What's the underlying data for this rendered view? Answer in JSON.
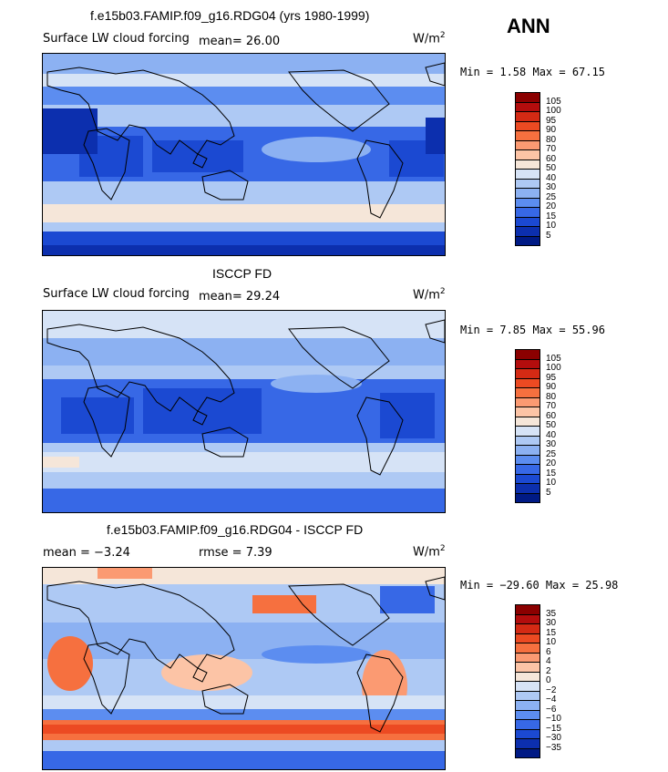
{
  "season": "ANN",
  "units": "W/m",
  "units_sup": "2",
  "panels": [
    {
      "title": "f.e15b03.FAMIP.f09_g16.RDG04 (yrs 1980-1999)",
      "variable": "Surface LW cloud forcing",
      "stat_left": "mean=   26.00",
      "stat_right": "",
      "minmax": "Min =   1.58 Max =  67.15",
      "palette": "abs"
    },
    {
      "title": "ISCCP FD",
      "variable": "Surface LW cloud forcing",
      "stat_left": "mean=   29.24",
      "stat_right": "",
      "minmax": "Min =   7.85 Max =  55.96",
      "palette": "abs"
    },
    {
      "title": "f.e15b03.FAMIP.f09_g16.RDG04 - ISCCP FD",
      "variable": "",
      "stat_left": "mean =  −3.24",
      "stat_right": "rmse =   7.39",
      "minmax": "Min = −29.60 Max =  25.98",
      "palette": "diff"
    }
  ],
  "chart_data": [
    {
      "type": "heatmap",
      "title": "f.e15b03.FAMIP.f09_g16.RDG04 (yrs 1980-1999)",
      "subtitle": "Surface LW cloud forcing",
      "units": "W/m2",
      "mean": 26.0,
      "min": 1.58,
      "max": 67.15,
      "colorbar_levels": [
        "105",
        "100",
        "95",
        "90",
        "80",
        "70",
        "60",
        "50",
        "40",
        "30",
        "25",
        "20",
        "15",
        "10",
        "5"
      ],
      "colors": [
        "#8b0000",
        "#b30d0d",
        "#d42a14",
        "#ec4a22",
        "#f6703f",
        "#fb9a72",
        "#fcc4a6",
        "#f5e6d9",
        "#d6e3f6",
        "#aec9f4",
        "#8cb1f2",
        "#5c8df0",
        "#3768e6",
        "#1b49d2",
        "#0c2fae",
        "#001a85"
      ]
    },
    {
      "type": "heatmap",
      "title": "ISCCP FD",
      "subtitle": "Surface LW cloud forcing",
      "units": "W/m2",
      "mean": 29.24,
      "min": 7.85,
      "max": 55.96,
      "colorbar_levels": [
        "105",
        "100",
        "95",
        "90",
        "80",
        "70",
        "60",
        "50",
        "40",
        "30",
        "25",
        "20",
        "15",
        "10",
        "5"
      ],
      "colors": [
        "#8b0000",
        "#b30d0d",
        "#d42a14",
        "#ec4a22",
        "#f6703f",
        "#fb9a72",
        "#fcc4a6",
        "#f5e6d9",
        "#d6e3f6",
        "#aec9f4",
        "#8cb1f2",
        "#5c8df0",
        "#3768e6",
        "#1b49d2",
        "#0c2fae",
        "#001a85"
      ]
    },
    {
      "type": "heatmap",
      "title": "f.e15b03.FAMIP.f09_g16.RDG04 - ISCCP FD",
      "units": "W/m2",
      "mean": -3.24,
      "rmse": 7.39,
      "min": -29.6,
      "max": 25.98,
      "colorbar_levels": [
        "35",
        "30",
        "15",
        "10",
        "6",
        "4",
        "2",
        "0",
        "−2",
        "−4",
        "−6",
        "−10",
        "−15",
        "−30",
        "−35"
      ],
      "colors": [
        "#8b0000",
        "#b30d0d",
        "#d42a14",
        "#ec4a22",
        "#f6703f",
        "#fb9a72",
        "#fcc4a6",
        "#f5e6d9",
        "#d6e3f6",
        "#aec9f4",
        "#8cb1f2",
        "#5c8df0",
        "#3768e6",
        "#1b49d2",
        "#0c2fae",
        "#001a85"
      ]
    }
  ]
}
